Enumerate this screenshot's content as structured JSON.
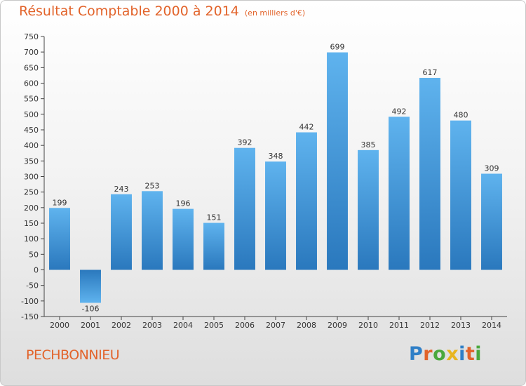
{
  "chart_data": {
    "type": "bar",
    "title": "Résultat Comptable 2000 à 2014",
    "subtitle": "(en milliers d'€)",
    "categories": [
      "2000",
      "2001",
      "2002",
      "2003",
      "2004",
      "2005",
      "2006",
      "2007",
      "2008",
      "2009",
      "2010",
      "2011",
      "2012",
      "2013",
      "2014"
    ],
    "values": [
      199,
      -106,
      243,
      253,
      196,
      151,
      392,
      348,
      442,
      699,
      385,
      492,
      617,
      480,
      309
    ],
    "ylim": [
      -150,
      750
    ],
    "yticks": [
      -150,
      -100,
      -50,
      0,
      50,
      100,
      150,
      200,
      250,
      300,
      350,
      400,
      450,
      500,
      550,
      600,
      650,
      700,
      750
    ],
    "grid": false,
    "xlabel": "",
    "ylabel": "",
    "bar_color": "#3d94d6"
  },
  "place": "PECHBONNIEU",
  "brand": {
    "letters": [
      "P",
      "r",
      "o",
      "x",
      "i",
      "t",
      "i"
    ],
    "colors": [
      "#2f7fc7",
      "#e2632a",
      "#4aa83d",
      "#e8b51f",
      "#2f7fc7",
      "#e2632a",
      "#4aa83d"
    ]
  }
}
